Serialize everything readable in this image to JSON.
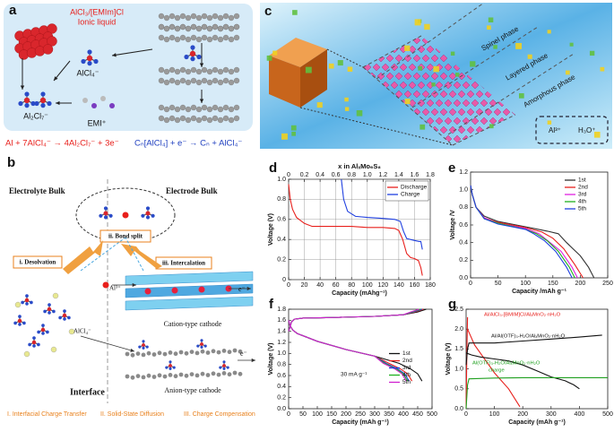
{
  "diagrams": {
    "a": {
      "label": "a",
      "title": "AlCl₃/[EMIm]Cl",
      "subtitle": "Ionic liquid",
      "species": [
        "AlCl₄⁻",
        "Al₂Cl₇⁻",
        "EMI⁺"
      ],
      "equation_left": "Al + 7AlCl₄⁻ → 4Al₂Cl₇⁻ + 3e⁻",
      "equation_right": "Cₙ[AlCl₄] + e⁻ → Cₙ + AlCl₄⁻"
    },
    "b": {
      "label": "b",
      "left_title": "Electrolyte Bulk",
      "right_title": "Electrode Bulk",
      "bond_split": "ii. Bond split",
      "desolvation": "i. Desolvation",
      "intercalation": "iii. Intercalation",
      "cation_ion": "Al³⁺",
      "anion_ion": "AlCl₄⁻",
      "cation_cathode": "Cation-type cathode",
      "anion_cathode": "Anion-type cathode",
      "electron": "e⁻",
      "interface": "Interface",
      "steps": [
        "I. Interfacial Charge Transfer",
        "II. Solid-State Diffusion",
        "III. Charge Compensation"
      ]
    },
    "c": {
      "label": "c",
      "phases": [
        "Spinel phase",
        "Layered phase",
        "Amorphous phase"
      ],
      "ions": [
        "Al³⁺",
        "H₃O⁺"
      ]
    }
  },
  "chart_data": [
    {
      "type": "line",
      "panel_label": "d",
      "xlabel": "Capacity (mAhg⁻¹)",
      "ylabel": "Voltage (V)",
      "x2label": "x in AlₓMo₆S₈",
      "xlim": [
        0,
        180
      ],
      "xticks": [
        0,
        20,
        40,
        60,
        80,
        100,
        120,
        140,
        160,
        180
      ],
      "x2lim": [
        0,
        1.8
      ],
      "x2ticks": [
        0,
        0.2,
        0.4,
        0.6,
        0.8,
        {
          "value": 1,
          "label": "1.0"
        },
        1.2,
        1.4,
        1.6,
        1.8
      ],
      "ylim": [
        0,
        1
      ],
      "yticks": [
        0,
        0.2,
        0.4,
        0.6,
        0.8,
        {
          "value": 1,
          "label": "1.0"
        }
      ],
      "grid": true,
      "legend": "upper right",
      "series": [
        {
          "name": "Discharge",
          "color": "#e8201c",
          "x": [
            0,
            2,
            5,
            10,
            20,
            30,
            40,
            60,
            80,
            100,
            120,
            135,
            140,
            145,
            150,
            155,
            160,
            165,
            168,
            170
          ],
          "values": [
            0.95,
            0.8,
            0.7,
            0.62,
            0.56,
            0.53,
            0.53,
            0.53,
            0.53,
            0.52,
            0.52,
            0.51,
            0.49,
            0.4,
            0.26,
            0.22,
            0.21,
            0.19,
            0.12,
            0.04
          ]
        },
        {
          "name": "Charge",
          "color": "#2040e0",
          "x": [
            170,
            168,
            166,
            160,
            150,
            146,
            142,
            135,
            120,
            100,
            85,
            75,
            70,
            67
          ],
          "values": [
            0.3,
            0.38,
            0.38,
            0.39,
            0.41,
            0.48,
            0.58,
            0.6,
            0.61,
            0.62,
            0.63,
            0.68,
            0.8,
            1.0
          ]
        }
      ]
    },
    {
      "type": "line",
      "panel_label": "e",
      "xlabel": "Capacity /mAh g⁻¹",
      "ylabel": "Voltage /V",
      "xlim": [
        0,
        250
      ],
      "xticks": [
        0,
        50,
        100,
        150,
        200,
        250
      ],
      "ylim": [
        0,
        1.2
      ],
      "yticks": [
        {
          "value": 0,
          "label": "0.0"
        },
        0.2,
        0.4,
        0.6,
        0.8,
        {
          "value": 1,
          "label": "1.0"
        },
        1.2
      ],
      "grid": false,
      "legend": "upper right",
      "series": [
        {
          "name": "1st",
          "color": "#333333",
          "x": [
            0,
            3,
            10,
            25,
            50,
            100,
            140,
            160,
            175,
            200,
            215,
            225
          ],
          "values": [
            1.05,
            0.95,
            0.8,
            0.7,
            0.64,
            0.58,
            0.53,
            0.5,
            0.4,
            0.25,
            0.12,
            0
          ]
        },
        {
          "name": "2nd",
          "color": "#e8201c",
          "x": [
            0,
            3,
            10,
            25,
            50,
            100,
            130,
            150,
            170,
            190,
            205
          ],
          "values": [
            1.05,
            0.95,
            0.8,
            0.68,
            0.63,
            0.57,
            0.52,
            0.45,
            0.33,
            0.15,
            0
          ]
        },
        {
          "name": "3rd",
          "color": "#e020e0",
          "x": [
            0,
            3,
            10,
            25,
            50,
            100,
            125,
            145,
            165,
            185,
            195
          ],
          "values": [
            1.05,
            0.95,
            0.8,
            0.68,
            0.62,
            0.56,
            0.5,
            0.4,
            0.3,
            0.12,
            0
          ]
        },
        {
          "name": "4th",
          "color": "#20b020",
          "x": [
            0,
            3,
            10,
            25,
            50,
            100,
            120,
            140,
            160,
            180,
            190
          ],
          "values": [
            1.05,
            0.95,
            0.8,
            0.67,
            0.62,
            0.55,
            0.5,
            0.42,
            0.3,
            0.12,
            0
          ]
        },
        {
          "name": "5th",
          "color": "#2040e0",
          "x": [
            0,
            3,
            10,
            25,
            50,
            100,
            115,
            135,
            155,
            175,
            185
          ],
          "values": [
            1.05,
            0.95,
            0.8,
            0.67,
            0.61,
            0.55,
            0.5,
            0.42,
            0.3,
            0.12,
            0
          ]
        }
      ]
    },
    {
      "type": "line",
      "panel_label": "f",
      "xlabel": "Capacity (mAh g⁻¹)",
      "ylabel": "Voltage (V)",
      "annotation": "30 mA g⁻¹",
      "xlim": [
        0,
        500
      ],
      "xticks": [
        0,
        50,
        100,
        150,
        200,
        250,
        300,
        350,
        400,
        450,
        500
      ],
      "ylim": [
        0,
        1.8
      ],
      "yticks": [
        {
          "value": 0,
          "label": "0.0"
        },
        0.2,
        0.4,
        0.6,
        0.8,
        {
          "value": 1,
          "label": "1.0"
        },
        1.2,
        1.4,
        1.6,
        1.8
      ],
      "grid": false,
      "legend": "center right",
      "series": [
        {
          "name": "1st",
          "color": "#111111",
          "x": [
            0,
            5,
            10,
            20,
            50,
            150,
            300,
            400,
            450,
            480,
            null,
            0,
            5,
            15,
            30,
            60,
            100,
            200,
            300,
            385,
            425,
            450,
            465
          ],
          "values": [
            1.4,
            1.48,
            1.57,
            1.62,
            1.64,
            1.65,
            1.67,
            1.7,
            1.75,
            1.8,
            null,
            1.6,
            1.5,
            1.42,
            1.36,
            1.3,
            1.22,
            1.07,
            0.95,
            0.82,
            0.72,
            0.63,
            0.5
          ]
        },
        {
          "name": "2nd",
          "color": "#e8201c",
          "x": [
            0,
            5,
            10,
            20,
            50,
            150,
            300,
            400,
            440,
            470,
            null,
            0,
            5,
            15,
            30,
            60,
            100,
            200,
            300,
            350,
            390,
            415,
            430
          ],
          "values": [
            1.4,
            1.48,
            1.57,
            1.62,
            1.64,
            1.65,
            1.67,
            1.7,
            1.75,
            1.8,
            null,
            1.6,
            1.5,
            1.42,
            1.36,
            1.3,
            1.22,
            1.07,
            0.95,
            0.82,
            0.72,
            0.63,
            0.5
          ]
        },
        {
          "name": "3rd",
          "color": "#2040e0",
          "x": [
            0,
            5,
            10,
            20,
            50,
            150,
            300,
            400,
            435,
            465,
            null,
            0,
            5,
            15,
            30,
            60,
            100,
            200,
            300,
            340,
            380,
            405,
            420
          ],
          "values": [
            1.4,
            1.48,
            1.57,
            1.62,
            1.64,
            1.65,
            1.67,
            1.7,
            1.75,
            1.8,
            null,
            1.6,
            1.5,
            1.42,
            1.36,
            1.3,
            1.22,
            1.07,
            0.95,
            0.82,
            0.72,
            0.63,
            0.5
          ]
        },
        {
          "name": "4th",
          "color": "#20b020",
          "x": [
            0,
            5,
            10,
            20,
            50,
            150,
            300,
            400,
            430,
            460,
            null,
            0,
            5,
            15,
            30,
            60,
            100,
            200,
            300,
            335,
            375,
            400,
            415
          ],
          "values": [
            1.4,
            1.48,
            1.57,
            1.62,
            1.64,
            1.65,
            1.67,
            1.7,
            1.75,
            1.8,
            null,
            1.6,
            1.5,
            1.42,
            1.36,
            1.3,
            1.22,
            1.07,
            0.95,
            0.82,
            0.72,
            0.63,
            0.5
          ]
        },
        {
          "name": "5th",
          "color": "#d020d0",
          "x": [
            0,
            5,
            10,
            20,
            50,
            150,
            300,
            400,
            425,
            455,
            null,
            0,
            5,
            15,
            30,
            60,
            100,
            200,
            300,
            330,
            370,
            395,
            410
          ],
          "values": [
            1.4,
            1.48,
            1.57,
            1.62,
            1.64,
            1.65,
            1.67,
            1.7,
            1.75,
            1.8,
            null,
            1.6,
            1.5,
            1.42,
            1.36,
            1.3,
            1.22,
            1.07,
            0.95,
            0.82,
            0.72,
            0.63,
            0.5
          ]
        }
      ]
    },
    {
      "type": "line",
      "panel_label": "g",
      "xlabel": "Capacity (mAh g⁻¹)",
      "ylabel": "Voltage (V)",
      "annotation": "charge",
      "xlim": [
        0,
        500
      ],
      "xticks": [
        0,
        100,
        200,
        300,
        400,
        500
      ],
      "ylim": [
        0,
        2.5
      ],
      "yticks": [
        {
          "value": 0,
          "label": "0.0"
        },
        0.5,
        {
          "value": 1,
          "label": "1.0"
        },
        1.5,
        {
          "value": 2,
          "label": "2.0"
        },
        2.5
      ],
      "grid": false,
      "legend": "labels",
      "series": [
        {
          "name": "Al/AlCl₃-[BMIM]Cl/AlₓMnO₂·nH₂O",
          "color": "#e8201c",
          "x": [
            0,
            3,
            5,
            null,
            5,
            30,
            60,
            100,
            150,
            190
          ],
          "values": [
            0,
            1.5,
            2.3,
            null,
            2.0,
            1.6,
            1.3,
            0.9,
            0.5,
            0.05
          ]
        },
        {
          "name": "Al/Al(OTF)₃-H₂O/AlₓMnO₂·nH₂O",
          "color": "#111111",
          "x": [
            0,
            5,
            10,
            50,
            100,
            200,
            300,
            400,
            480,
            null,
            0,
            20,
            50,
            100,
            150,
            200,
            250,
            300,
            350,
            380,
            400
          ],
          "values": [
            1.1,
            1.5,
            1.65,
            1.65,
            1.65,
            1.7,
            1.75,
            1.8,
            1.85,
            null,
            1.4,
            1.35,
            1.3,
            1.25,
            1.2,
            1.1,
            0.95,
            0.8,
            0.7,
            0.6,
            0.5
          ]
        },
        {
          "name": "Al(OTF)₃-H₂O/AlₓMnO₂·nH₂O",
          "color": "#20a020",
          "x": [
            0,
            5,
            10,
            100,
            200,
            300,
            400,
            500
          ],
          "values": [
            0,
            0.6,
            0.75,
            0.77,
            0.78,
            0.78,
            0.78,
            0.78
          ]
        }
      ]
    }
  ]
}
